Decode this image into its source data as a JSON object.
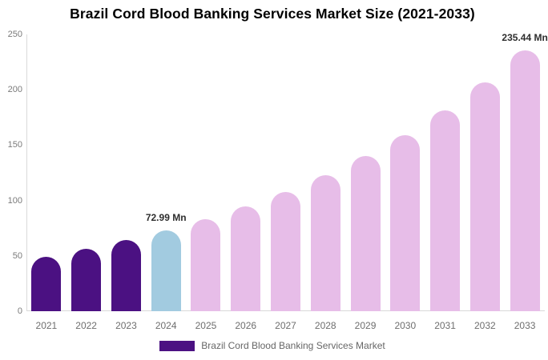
{
  "chart_data": {
    "type": "bar",
    "title": "Brazil Cord Blood Banking Services Market Size (2021-2033)",
    "categories": [
      "2021",
      "2022",
      "2023",
      "2024",
      "2025",
      "2026",
      "2027",
      "2028",
      "2029",
      "2030",
      "2031",
      "2032",
      "2033"
    ],
    "series": [
      {
        "name": "Brazil Cord Blood Banking Services Market",
        "values": [
          49,
          56,
          64,
          72.99,
          83,
          95,
          108,
          123,
          140,
          159,
          181,
          207,
          235.44
        ]
      }
    ],
    "bar_colors": [
      "#4B1182",
      "#4B1182",
      "#4B1182",
      "#A2CBE0",
      "#E7BDE8",
      "#E7BDE8",
      "#E7BDE8",
      "#E7BDE8",
      "#E7BDE8",
      "#E7BDE8",
      "#E7BDE8",
      "#E7BDE8",
      "#E7BDE8"
    ],
    "ylim": [
      0,
      250
    ],
    "yticks": [
      0,
      50,
      100,
      150,
      200,
      250
    ],
    "grid": false,
    "legend_position": "bottom",
    "xlabel": "",
    "ylabel": "",
    "annotations": [
      {
        "category": "2024",
        "text": "72.99 Mn"
      },
      {
        "category": "2033",
        "text": "235.44 Mn"
      }
    ]
  },
  "legend": {
    "label": "Brazil Cord Blood Banking Services Market",
    "swatch_color": "#4B1182"
  },
  "colors": {
    "bar_historical": "#4B1182",
    "bar_base_year": "#A2CBE0",
    "bar_forecast": "#E7BDE8",
    "axis_line": "#D9D9D9",
    "y_tick_label": "#7A7A7A",
    "x_tick_label": "#6E6E6E",
    "legend_text": "#666666",
    "title": "#000000",
    "data_label": "#2E2E2E"
  }
}
